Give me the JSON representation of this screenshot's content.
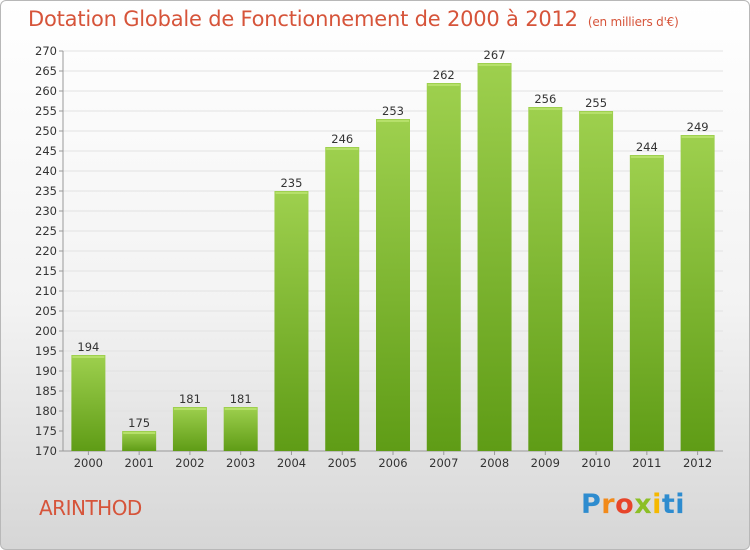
{
  "title": "Dotation Globale de Fonctionnement de 2000 à 2012",
  "subtitle": "(en milliers d'€)",
  "commune": "ARINTHOD",
  "logo": {
    "parts": [
      "P",
      "r",
      "o",
      "x",
      "i",
      "ti"
    ]
  },
  "colors": {
    "bar": "#7cbd2e",
    "bar_light": "#9ed04e",
    "bar_dark": "#5f9c16",
    "title": "#d6543a",
    "grid": "#e2e2e2"
  },
  "chart_data": {
    "type": "bar",
    "categories": [
      "2000",
      "2001",
      "2002",
      "2003",
      "2004",
      "2005",
      "2006",
      "2007",
      "2008",
      "2009",
      "2010",
      "2011",
      "2012"
    ],
    "values": [
      194,
      175,
      181,
      181,
      235,
      246,
      253,
      262,
      267,
      256,
      255,
      244,
      249
    ],
    "title": "Dotation Globale de Fonctionnement de 2000 à 2012",
    "subtitle": "(en milliers d'€)",
    "xlabel": "",
    "ylabel": "",
    "ylim": [
      170,
      270
    ],
    "yticks": [
      170,
      175,
      180,
      185,
      190,
      195,
      200,
      205,
      210,
      215,
      220,
      225,
      230,
      235,
      240,
      245,
      250,
      255,
      260,
      265,
      270
    ],
    "grid": true,
    "legend": "none"
  }
}
